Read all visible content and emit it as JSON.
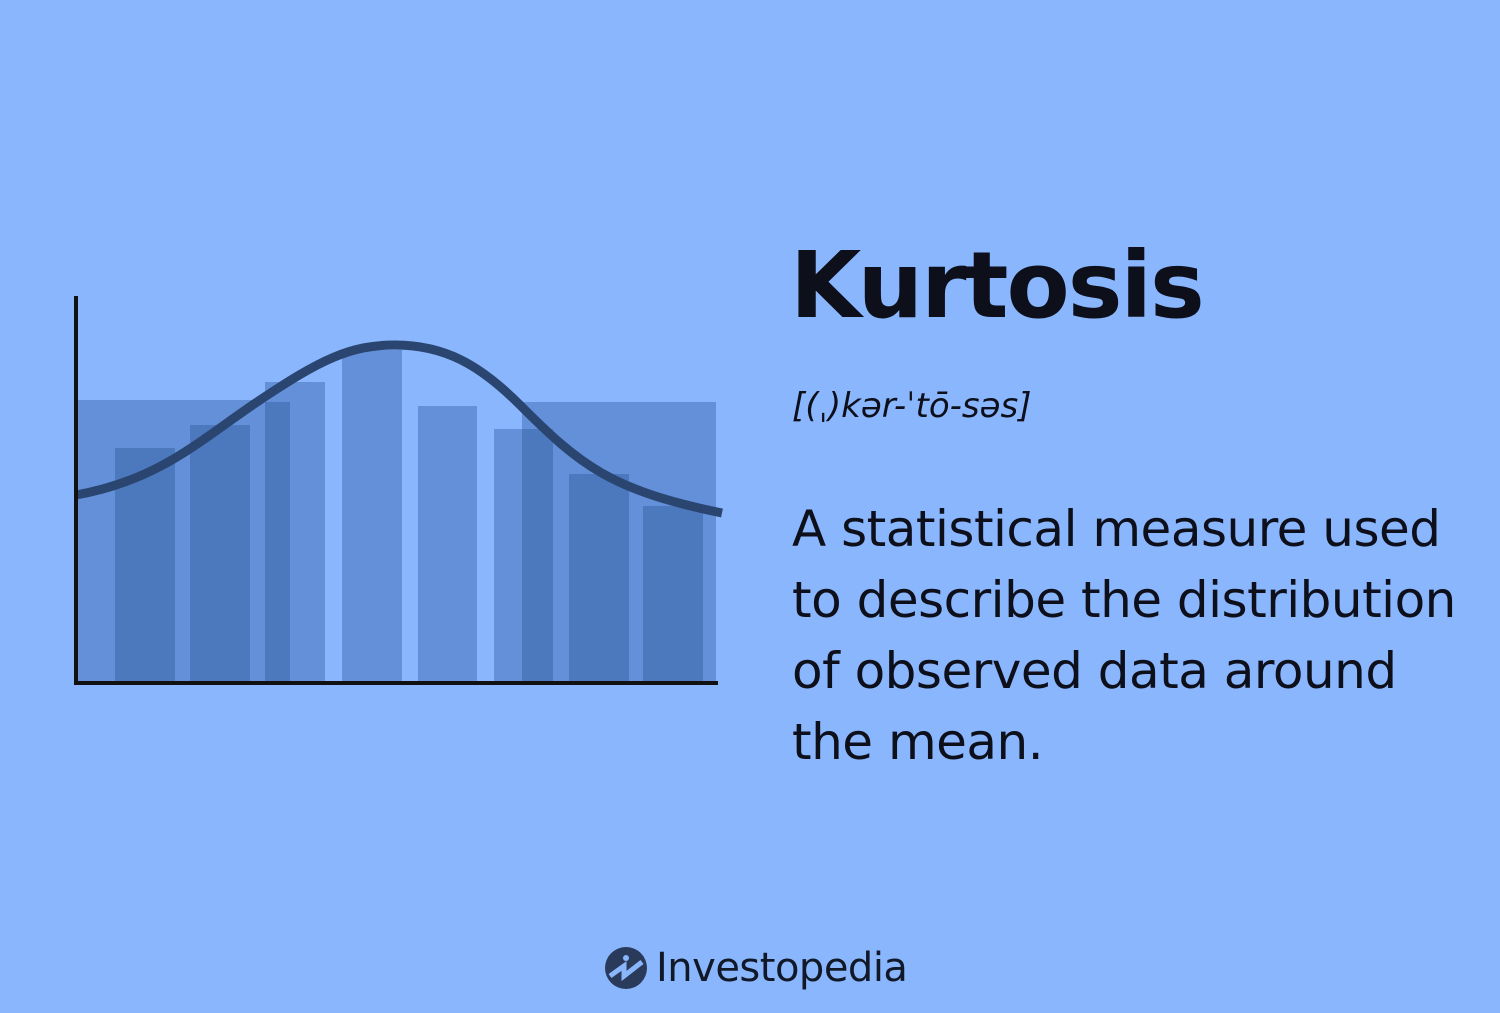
{
  "title": "Kurtosis",
  "pronunciation": "[(ˌ)kər-ˈtō-səs]",
  "definition": "A statistical measure used to describe the distribution of observed data around the mean.",
  "brand": {
    "name": "Investopedia",
    "logo_icon": "investopedia-logo-icon"
  },
  "colors": {
    "background": "#8ab6fd",
    "bar_light": "#6390d8",
    "bar_dark": "#4c78bd",
    "curve": "#2a4570",
    "text": "#0d0f1a"
  }
}
